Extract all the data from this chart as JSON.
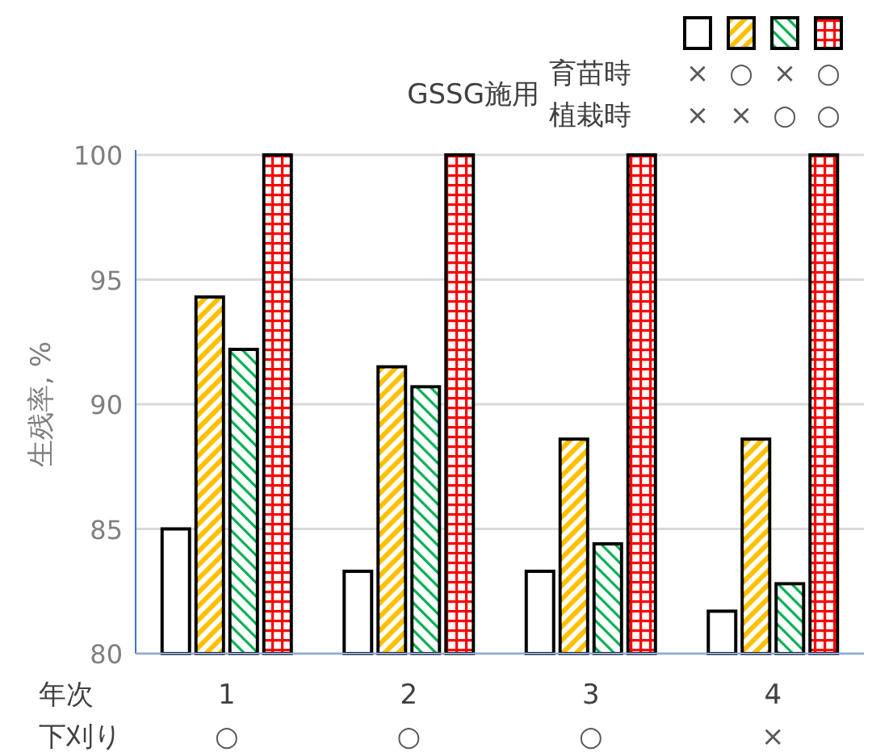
{
  "chart_data": {
    "type": "bar",
    "ylabel": "生残率, %",
    "categories": [
      "1",
      "2",
      "3",
      "4"
    ],
    "series": [
      {
        "color": "#ffffff",
        "values": [
          85.0,
          83.3,
          83.3,
          81.7
        ]
      },
      {
        "color": "#ffc000",
        "values": [
          94.3,
          91.5,
          88.6,
          88.6
        ]
      },
      {
        "color": "#00b050",
        "values": [
          92.2,
          90.7,
          84.4,
          82.8
        ]
      },
      {
        "color": "#ff0000",
        "values": [
          100,
          100,
          100,
          100
        ]
      }
    ],
    "ylim": [
      80,
      100
    ],
    "yticks": [
      80,
      85,
      90,
      95,
      100
    ],
    "grid": "y",
    "annotations": [
      "GSSG施用",
      "育苗時",
      "植栽時",
      "×",
      "○",
      "×",
      "○",
      "×",
      "×",
      "○",
      "○",
      "年次",
      "下刈り",
      "○",
      "○",
      "○",
      "×"
    ]
  }
}
